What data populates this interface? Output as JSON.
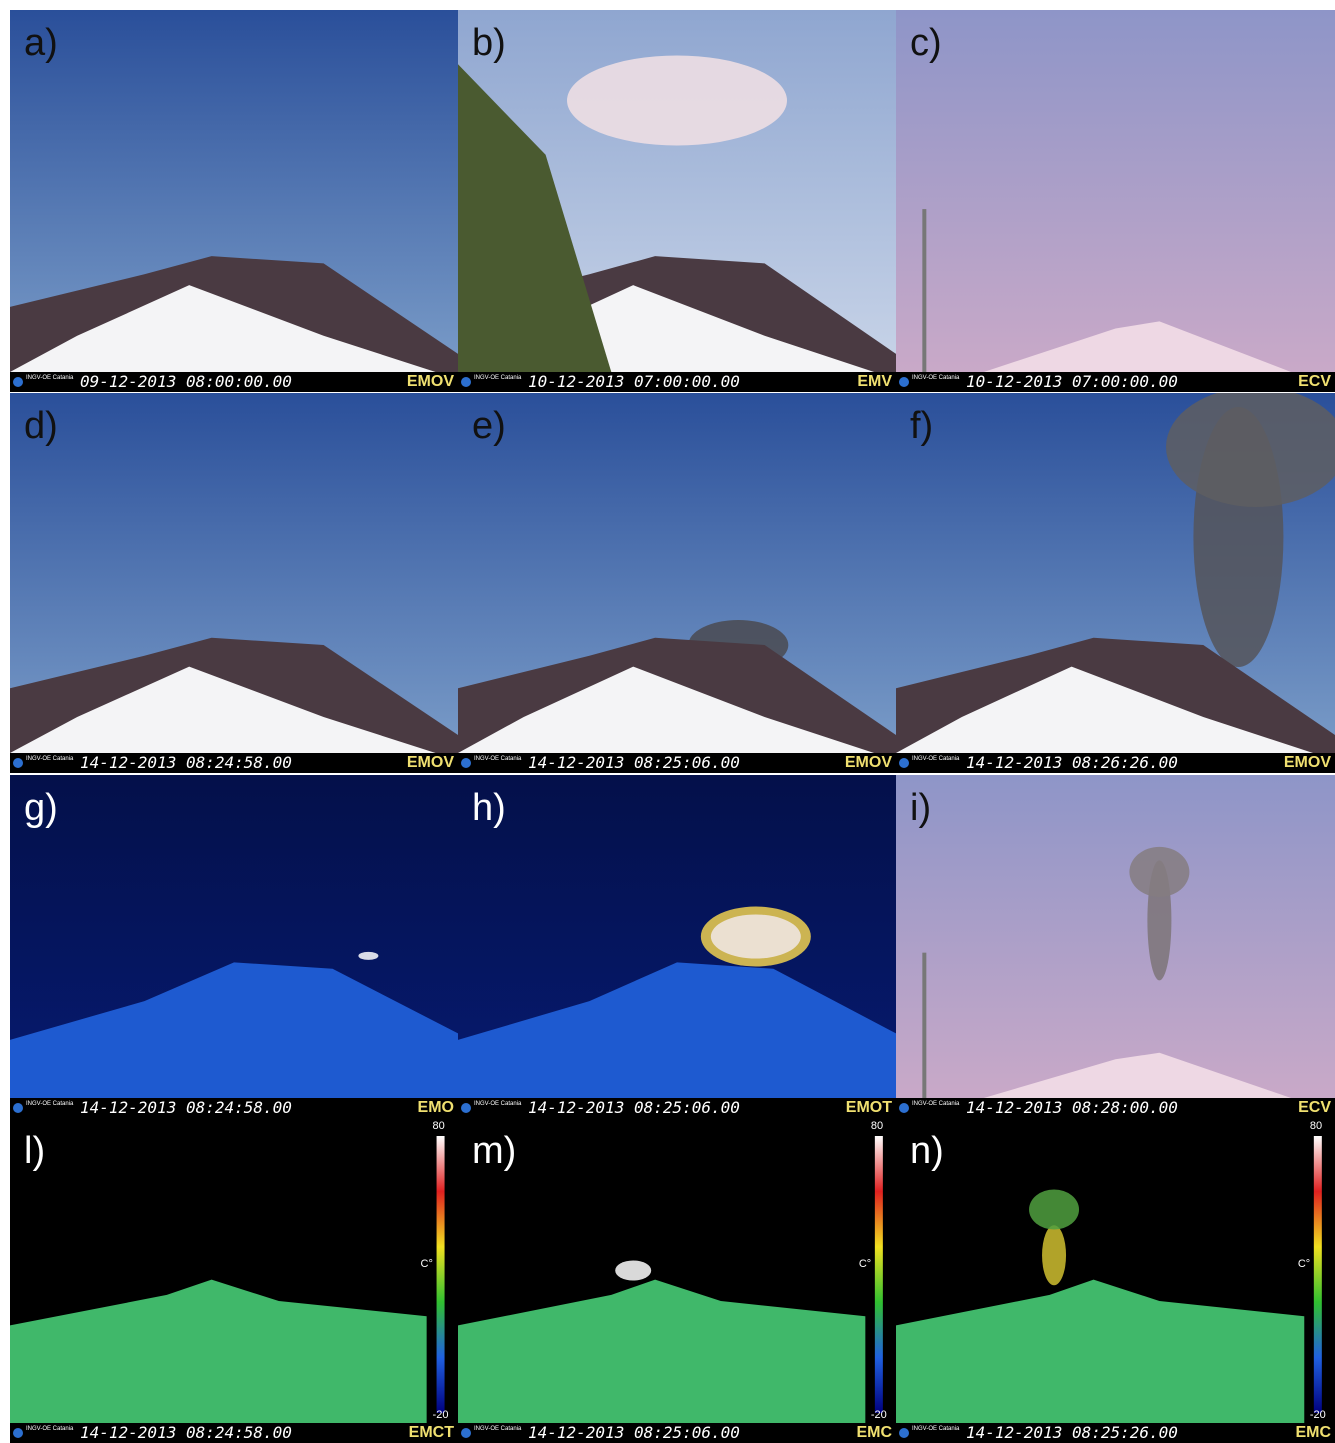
{
  "logo": "INGV-OE Catania",
  "panels": [
    {
      "label": "a)",
      "timestamp": "09-12-2013 08:00:00.00",
      "camera": "EMOV"
    },
    {
      "label": "b)",
      "timestamp": "10-12-2013 07:00:00.00",
      "camera": "EMV"
    },
    {
      "label": "c)",
      "timestamp": "10-12-2013 07:00:00.00",
      "camera": "ECV"
    },
    {
      "label": "d)",
      "timestamp": "14-12-2013 08:24:58.00",
      "camera": "EMOV"
    },
    {
      "label": "e)",
      "timestamp": "14-12-2013 08:25:06.00",
      "camera": "EMOV"
    },
    {
      "label": "f)",
      "timestamp": "14-12-2013 08:26:26.00",
      "camera": "EMOV"
    },
    {
      "label": "g)",
      "timestamp": "14-12-2013 08:24:58.00",
      "camera": "EMO"
    },
    {
      "label": "h)",
      "timestamp": "14-12-2013 08:25:06.00",
      "camera": "EMOT"
    },
    {
      "label": "i)",
      "timestamp": "14-12-2013 08:28:00.00",
      "camera": "ECV"
    },
    {
      "label": "l)",
      "timestamp": "14-12-2013 08:24:58.00",
      "camera": "EMCT",
      "colorbar": {
        "max": "80",
        "unit": "C°",
        "min": "-20"
      }
    },
    {
      "label": "m)",
      "timestamp": "14-12-2013 08:25:06.00",
      "camera": "EMC",
      "colorbar": {
        "max": "80",
        "unit": "C°",
        "min": "-20"
      }
    },
    {
      "label": "n)",
      "timestamp": "14-12-2013 08:25:26.00",
      "camera": "EMC",
      "colorbar": {
        "max": "80",
        "unit": "C°",
        "min": "-20"
      }
    }
  ]
}
